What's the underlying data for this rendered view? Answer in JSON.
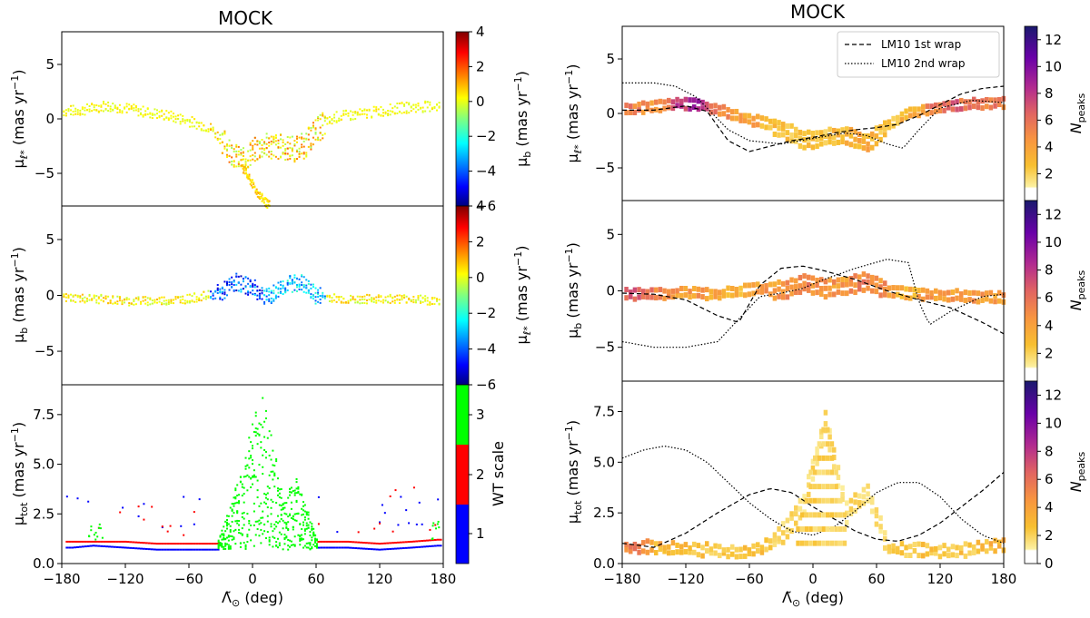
{
  "left_title": "MOCK",
  "right_title": "MOCK",
  "axis_labels": {
    "mu_l": "μ",
    "mu_l_sub": "ℓ*",
    "mu_b": "μ",
    "mu_b_sub": "b",
    "mu_tot": "μ",
    "mu_tot_sub": "tot",
    "unit": "(mas yr",
    "unit_exp": "−1",
    "unit_close": ")",
    "x_label_sym": "Λ̃",
    "x_label_sub": "⊙",
    "x_label_unit": "(deg)"
  },
  "colorbar_labels": {
    "mu_b_cb": "μ",
    "mu_b_cb_sub": "b",
    "mu_l_cb": "μ",
    "mu_l_cb_sub": "ℓ*",
    "wt_scale": "WT scale",
    "npeaks": "N",
    "npeaks_sub": "peaks",
    "unit": "(mas yr",
    "unit_exp": "−1",
    "unit_close": ")"
  },
  "legend": {
    "first": "LM10 1st wrap",
    "second": "LM10 2nd wrap"
  },
  "colors": {
    "first_wrap": "#000000",
    "second_wrap": "#000000",
    "wt1": "#0000ff",
    "wt2": "#ff0000",
    "wt3": "#00ff00"
  },
  "chart_data": [
    {
      "type": "scatter",
      "panel": "left-top",
      "title": "MOCK",
      "xlabel": "",
      "ylabel": "μℓ* (mas yr−1)",
      "xlim": [
        -180,
        180
      ],
      "ylim": [
        -8,
        8
      ],
      "yticks": [
        "-5",
        "0",
        "5"
      ],
      "color_by": "μb",
      "colorbar_range": [
        -6,
        4
      ],
      "colorbar_ticks": [
        "-6",
        "-4",
        "-2",
        "0",
        "2",
        "4"
      ],
      "series": [
        {
          "name": "track",
          "x": [
            -180,
            -160,
            -140,
            -120,
            -100,
            -80,
            -60,
            -40,
            -30,
            -20,
            -10,
            0,
            10,
            20,
            30,
            40,
            50,
            60,
            80,
            100,
            120,
            140,
            160,
            180
          ],
          "y": [
            0.7,
            0.8,
            1.2,
            1.0,
            0.6,
            0.3,
            -0.2,
            -0.8,
            -1.8,
            -3.0,
            -4.0,
            -3.0,
            -2.5,
            -2.5,
            -2.6,
            -2.8,
            -2.4,
            -1.0,
            0.2,
            0.4,
            0.7,
            1.0,
            1.1,
            1.2
          ]
        },
        {
          "name": "branch",
          "x": [
            -10,
            -5,
            0,
            5,
            10,
            15
          ],
          "y": [
            -4.0,
            -5.2,
            -6.0,
            -6.8,
            -7.4,
            -7.9
          ]
        }
      ]
    },
    {
      "type": "scatter",
      "panel": "left-middle",
      "xlabel": "",
      "ylabel": "μb (mas yr−1)",
      "xlim": [
        -180,
        180
      ],
      "ylim": [
        -8,
        8
      ],
      "yticks": [
        "-5",
        "0",
        "5"
      ],
      "color_by": "μℓ*",
      "colorbar_range": [
        -6,
        4
      ],
      "colorbar_ticks": [
        "-6",
        "-4",
        "-2",
        "0",
        "2",
        "4"
      ],
      "series": [
        {
          "name": "track",
          "x": [
            -180,
            -150,
            -120,
            -90,
            -60,
            -30,
            -15,
            0,
            15,
            30,
            45,
            60,
            90,
            120,
            150,
            180
          ],
          "y": [
            -0.2,
            -0.3,
            -0.5,
            -0.5,
            -0.3,
            0.2,
            1.2,
            0.7,
            -0.2,
            0.9,
            1.2,
            0.0,
            -0.4,
            -0.3,
            -0.3,
            -0.6
          ]
        }
      ]
    },
    {
      "type": "scatter",
      "panel": "left-bottom",
      "xlabel": "Λ̃⊙ (deg)",
      "ylabel": "μtot (mas yr−1)",
      "xlim": [
        -180,
        180
      ],
      "ylim": [
        0,
        9
      ],
      "yticks": [
        "0.0",
        "2.5",
        "5.0",
        "7.5"
      ],
      "xticks": [
        "-180",
        "-120",
        "-60",
        "0",
        "60",
        "120",
        "180"
      ],
      "color_by": "WT scale",
      "colorbar_ticks": [
        "1",
        "2",
        "3"
      ],
      "series": [
        {
          "name": "WT scale 1",
          "x": [
            -170,
            -150,
            -120,
            -90,
            -60,
            -35,
            65,
            90,
            120,
            150,
            175
          ],
          "y": [
            0.8,
            0.9,
            0.8,
            0.7,
            0.7,
            0.7,
            0.8,
            0.8,
            0.7,
            0.8,
            0.9
          ]
        },
        {
          "name": "WT scale 2",
          "x": [
            -170,
            -150,
            -120,
            -90,
            -60,
            -35,
            65,
            90,
            120,
            150,
            175
          ],
          "y": [
            1.1,
            1.1,
            1.1,
            1.0,
            1.0,
            1.0,
            1.1,
            1.1,
            1.0,
            1.1,
            1.2
          ]
        },
        {
          "name": "WT scale 3",
          "x": [
            -30,
            -20,
            -10,
            0,
            10,
            20,
            30,
            40,
            50,
            60
          ],
          "y": [
            1.5,
            3.0,
            5.0,
            7.5,
            8.5,
            6.0,
            3.0,
            4.5,
            3.0,
            1.5
          ]
        }
      ]
    },
    {
      "type": "heatmap",
      "panel": "right-top",
      "title": "MOCK",
      "xlabel": "",
      "ylabel": "μℓ* (mas yr−1)",
      "xlim": [
        -180,
        180
      ],
      "ylim": [
        -8,
        8
      ],
      "yticks": [
        "-5",
        "0",
        "5"
      ],
      "colorbar": "Npeaks",
      "colorbar_range": [
        0,
        13
      ],
      "colorbar_ticks": [
        "2",
        "4",
        "6",
        "8",
        "10",
        "12"
      ],
      "series": [
        {
          "name": "LM10 1st wrap",
          "x": [
            -180,
            -150,
            -120,
            -100,
            -80,
            -60,
            -40,
            -20,
            0,
            20,
            40,
            60,
            80,
            100,
            120,
            140,
            160,
            180
          ],
          "y": [
            0.3,
            0.3,
            0.7,
            0.2,
            -2.5,
            -3.5,
            -3.0,
            -2.5,
            -2.2,
            -1.8,
            -1.5,
            -1.3,
            -1.0,
            -0.2,
            0.8,
            1.8,
            2.3,
            2.5
          ]
        },
        {
          "name": "LM10 2nd wrap",
          "x": [
            -180,
            -150,
            -130,
            -110,
            -95,
            -80,
            -60,
            -30,
            0,
            30,
            50,
            70,
            85,
            100,
            120,
            150,
            180
          ],
          "y": [
            2.8,
            2.8,
            2.5,
            1.5,
            0.0,
            -1.5,
            -2.5,
            -2.8,
            -2.3,
            -1.8,
            -2.0,
            -2.8,
            -3.2,
            -1.5,
            0.5,
            1.2,
            1.0
          ]
        },
        {
          "name": "density",
          "x": [
            -170,
            -150,
            -130,
            -110,
            -90,
            -70,
            -50,
            -30,
            -10,
            10,
            30,
            50,
            70,
            90,
            110,
            130,
            150,
            170
          ],
          "y": [
            0.5,
            0.6,
            0.9,
            0.8,
            0.3,
            -0.4,
            -0.8,
            -1.5,
            -2.5,
            -2.2,
            -2.0,
            -2.8,
            -1.0,
            0.0,
            0.5,
            0.8,
            0.9,
            1.0
          ],
          "npeaks": [
            6,
            5,
            8,
            9,
            6,
            5,
            4,
            3,
            3,
            3,
            4,
            4,
            3,
            4,
            6,
            7,
            6,
            6
          ]
        }
      ]
    },
    {
      "type": "heatmap",
      "panel": "right-middle",
      "xlabel": "",
      "ylabel": "μb (mas yr−1)",
      "xlim": [
        -180,
        180
      ],
      "ylim": [
        -8,
        8
      ],
      "yticks": [
        "-5",
        "0",
        "5"
      ],
      "colorbar": "Npeaks",
      "colorbar_range": [
        0,
        13
      ],
      "colorbar_ticks": [
        "2",
        "4",
        "6",
        "8",
        "10",
        "12"
      ],
      "series": [
        {
          "name": "LM10 1st wrap",
          "x": [
            -180,
            -150,
            -120,
            -90,
            -70,
            -50,
            -30,
            -10,
            10,
            40,
            70,
            100,
            130,
            160,
            180
          ],
          "y": [
            -0.2,
            -0.3,
            -0.8,
            -2.2,
            -2.8,
            0.5,
            2.0,
            2.2,
            1.8,
            1.0,
            0.0,
            -0.8,
            -1.5,
            -2.8,
            -3.8
          ]
        },
        {
          "name": "LM10 2nd wrap",
          "x": [
            -180,
            -150,
            -120,
            -90,
            -70,
            -50,
            -30,
            -10,
            10,
            40,
            70,
            90,
            100,
            110,
            130,
            160,
            180
          ],
          "y": [
            -4.5,
            -5.0,
            -5.0,
            -4.5,
            -2.5,
            -0.5,
            -0.2,
            0.2,
            1.0,
            2.0,
            2.8,
            2.5,
            -1.0,
            -3.0,
            -1.8,
            -0.5,
            -0.3
          ]
        },
        {
          "name": "density",
          "x": [
            -170,
            -150,
            -130,
            -110,
            -90,
            -70,
            -50,
            -30,
            -10,
            10,
            30,
            50,
            70,
            90,
            110,
            130,
            150,
            170
          ],
          "y": [
            -0.3,
            -0.3,
            -0.2,
            -0.2,
            -0.3,
            0.0,
            0.2,
            0.0,
            0.7,
            0.2,
            0.5,
            0.8,
            0.0,
            -0.2,
            -0.4,
            -0.4,
            -0.5,
            -0.6
          ],
          "npeaks": [
            7,
            6,
            5,
            5,
            4,
            4,
            5,
            5,
            6,
            5,
            5,
            6,
            5,
            4,
            5,
            5,
            5,
            5
          ]
        }
      ]
    },
    {
      "type": "heatmap",
      "panel": "right-bottom",
      "xlabel": "Λ̃⊙ (deg)",
      "ylabel": "μtot (mas yr−1)",
      "xlim": [
        -180,
        180
      ],
      "ylim": [
        0,
        9
      ],
      "yticks": [
        "0.0",
        "2.5",
        "5.0",
        "7.5"
      ],
      "xticks": [
        "-180",
        "-120",
        "-60",
        "0",
        "60",
        "120",
        "180"
      ],
      "colorbar": "Npeaks",
      "colorbar_range": [
        0,
        13
      ],
      "colorbar_ticks": [
        "0",
        "2",
        "4",
        "6",
        "8",
        "10",
        "12"
      ],
      "series": [
        {
          "name": "LM10 1st wrap",
          "x": [
            -180,
            -150,
            -120,
            -90,
            -60,
            -40,
            -20,
            0,
            20,
            40,
            60,
            80,
            100,
            120,
            140,
            160,
            180
          ],
          "y": [
            1.0,
            0.8,
            1.5,
            2.5,
            3.4,
            3.7,
            3.5,
            2.8,
            2.2,
            1.6,
            1.2,
            1.1,
            1.4,
            2.0,
            2.8,
            3.6,
            4.5
          ]
        },
        {
          "name": "LM10 2nd wrap",
          "x": [
            -180,
            -160,
            -140,
            -120,
            -100,
            -80,
            -60,
            -40,
            -20,
            0,
            20,
            40,
            60,
            80,
            100,
            120,
            140,
            160,
            180
          ],
          "y": [
            5.2,
            5.6,
            5.8,
            5.6,
            5.0,
            4.0,
            3.0,
            2.2,
            1.6,
            1.4,
            1.8,
            2.6,
            3.5,
            4.0,
            4.0,
            3.3,
            2.2,
            1.4,
            1.0
          ]
        },
        {
          "name": "density",
          "x": [
            -170,
            -150,
            -130,
            -110,
            -90,
            -70,
            -50,
            -30,
            -10,
            10,
            30,
            50,
            70,
            90,
            110,
            130,
            150,
            170
          ],
          "y": [
            0.8,
            0.8,
            0.7,
            0.7,
            0.6,
            0.6,
            0.7,
            1.5,
            3.0,
            7.0,
            2.5,
            3.5,
            0.7,
            0.7,
            0.6,
            0.6,
            0.7,
            0.9
          ],
          "npeaks": [
            6,
            4,
            4,
            3,
            3,
            3,
            3,
            2,
            2,
            2,
            2,
            2,
            2,
            3,
            3,
            3,
            3,
            4
          ]
        }
      ]
    }
  ]
}
